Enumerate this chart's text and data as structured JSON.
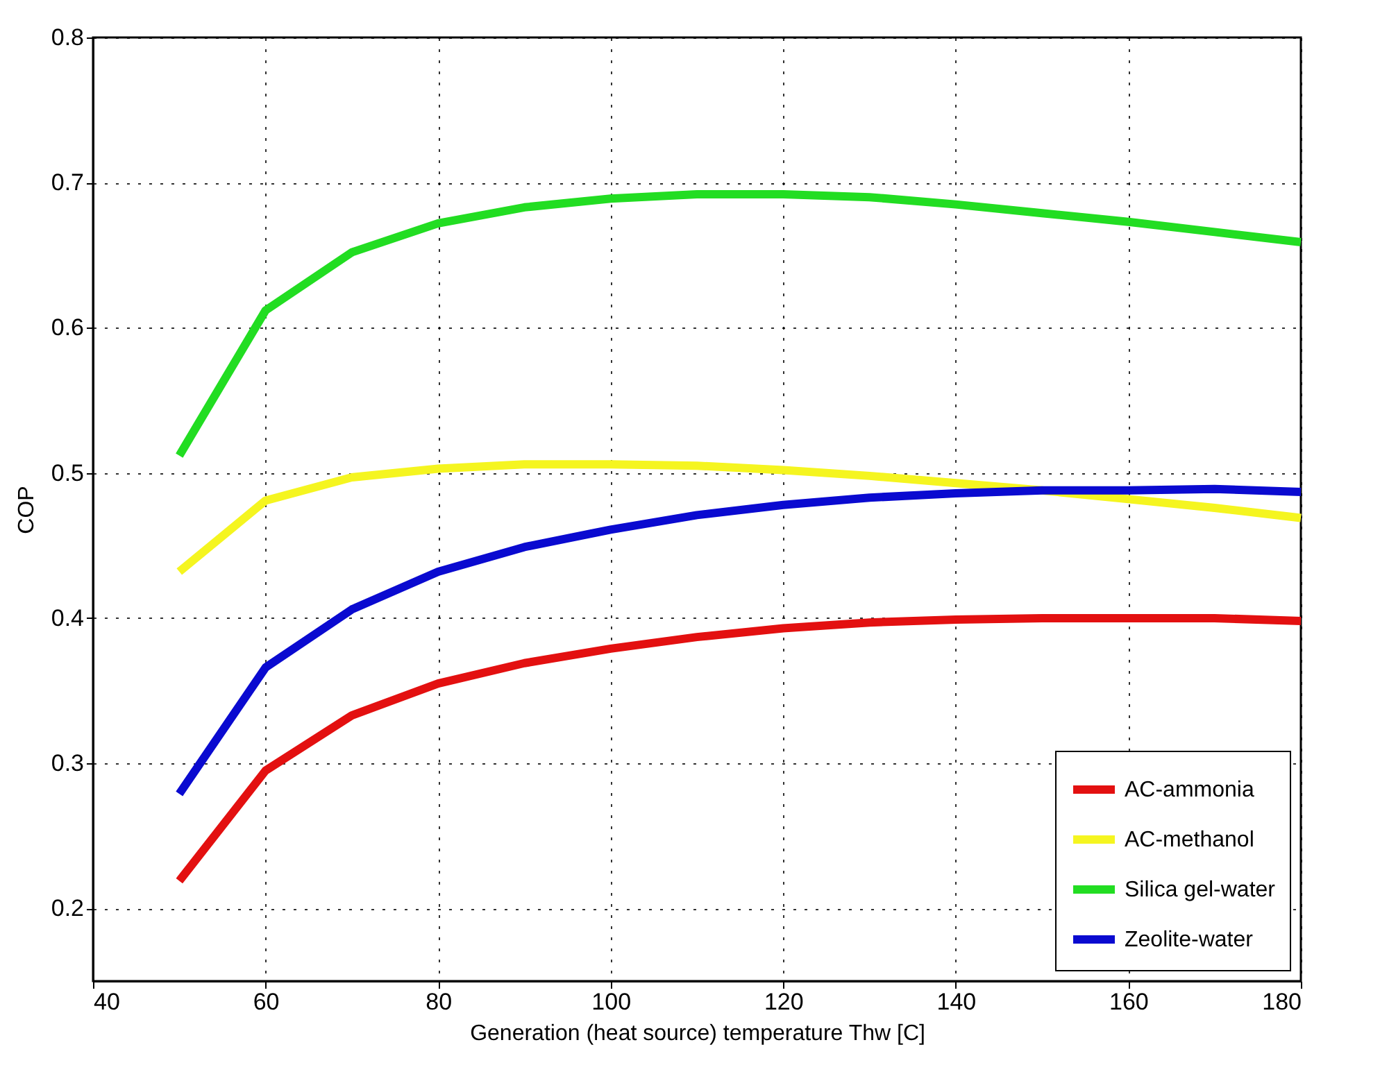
{
  "chart_data": {
    "type": "line",
    "xlabel": "Generation (heat source) temperature Thw [C]",
    "ylabel": "COP",
    "x": [
      50,
      60,
      70,
      80,
      90,
      100,
      110,
      120,
      130,
      140,
      150,
      160,
      170,
      180
    ],
    "series": [
      {
        "name": "AC-ammonia",
        "color": "#e31010",
        "values": [
          0.219,
          0.295,
          0.333,
          0.355,
          0.369,
          0.379,
          0.387,
          0.393,
          0.397,
          0.399,
          0.4,
          0.4,
          0.4,
          0.398
        ]
      },
      {
        "name": "AC-methanol",
        "color": "#f5f520",
        "values": [
          0.432,
          0.481,
          0.497,
          0.503,
          0.506,
          0.506,
          0.505,
          0.502,
          0.498,
          0.493,
          0.488,
          0.482,
          0.476,
          0.469
        ]
      },
      {
        "name": "Silica gel-water",
        "color": "#22dd22",
        "values": [
          0.512,
          0.612,
          0.652,
          0.672,
          0.683,
          0.689,
          0.692,
          0.692,
          0.69,
          0.685,
          0.679,
          0.673,
          0.666,
          0.659
        ]
      },
      {
        "name": "Zeolite-water",
        "color": "#0a0ad0",
        "values": [
          0.279,
          0.366,
          0.406,
          0.432,
          0.449,
          0.461,
          0.471,
          0.478,
          0.483,
          0.486,
          0.488,
          0.488,
          0.489,
          0.487
        ]
      }
    ],
    "xlim": [
      40,
      180
    ],
    "xticks": [
      40,
      60,
      80,
      100,
      120,
      140,
      160,
      180
    ],
    "ylim": [
      0.15,
      0.8
    ],
    "yticks": [
      0.2,
      0.3,
      0.4,
      0.5,
      0.6,
      0.7,
      0.8
    ],
    "grid": true,
    "legend": "bottom right",
    "line_style": "solid"
  }
}
